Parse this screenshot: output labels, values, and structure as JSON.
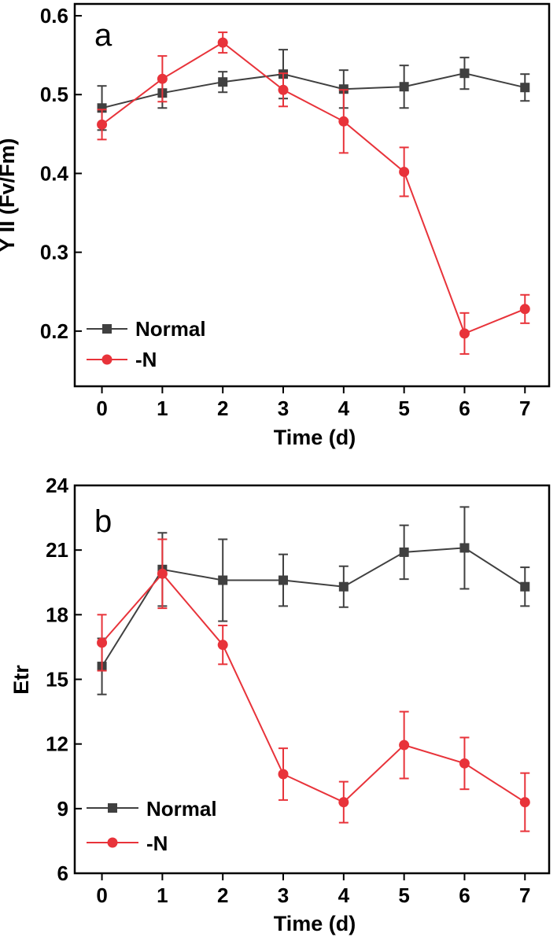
{
  "colors": {
    "normal": "#404040",
    "minus_n": "#e8333a",
    "axis": "#000000"
  },
  "chart_data": [
    {
      "type": "line",
      "panel": "a",
      "xlabel": "Time (d)",
      "ylabel": "Y II (Fv/Fm)",
      "x": [
        0,
        1,
        2,
        3,
        4,
        5,
        6,
        7
      ],
      "xlim": [
        -0.45,
        7.4
      ],
      "ylim": [
        0.13,
        0.615
      ],
      "xticks": [
        0,
        1,
        2,
        3,
        4,
        5,
        6,
        7
      ],
      "yticks": [
        0.2,
        0.3,
        0.4,
        0.5,
        0.6
      ],
      "ytick_labels": [
        "0.2",
        "0.3",
        "0.4",
        "0.5",
        "0.6"
      ],
      "legend_position": "bottom-left",
      "series": [
        {
          "name": "Normal",
          "marker": "square",
          "color": "#404040",
          "values": [
            0.483,
            0.502,
            0.516,
            0.526,
            0.507,
            0.51,
            0.527,
            0.509
          ],
          "errors": [
            0.028,
            0.019,
            0.013,
            0.031,
            0.024,
            0.027,
            0.02,
            0.017
          ]
        },
        {
          "name": "-N",
          "marker": "circle",
          "color": "#e8333a",
          "values": [
            0.462,
            0.52,
            0.566,
            0.506,
            0.466,
            0.402,
            0.197,
            0.228
          ],
          "errors": [
            0.019,
            0.029,
            0.013,
            0.021,
            0.04,
            0.031,
            0.026,
            0.018
          ]
        }
      ]
    },
    {
      "type": "line",
      "panel": "b",
      "xlabel": "Time (d)",
      "ylabel": "Etr",
      "x": [
        0,
        1,
        2,
        3,
        4,
        5,
        6,
        7
      ],
      "xlim": [
        -0.45,
        7.4
      ],
      "ylim": [
        6,
        24
      ],
      "xticks": [
        0,
        1,
        2,
        3,
        4,
        5,
        6,
        7
      ],
      "yticks": [
        6,
        9,
        12,
        15,
        18,
        21,
        24
      ],
      "ytick_labels": [
        "6",
        "9",
        "12",
        "15",
        "18",
        "21",
        "24"
      ],
      "legend_position": "bottom-left",
      "series": [
        {
          "name": "Normal",
          "marker": "square",
          "color": "#404040",
          "values": [
            15.6,
            20.1,
            19.6,
            19.6,
            19.3,
            20.9,
            21.1,
            19.3
          ],
          "errors": [
            1.3,
            1.7,
            1.9,
            1.2,
            0.95,
            1.25,
            1.9,
            0.9
          ]
        },
        {
          "name": "-N",
          "marker": "circle",
          "color": "#e8333a",
          "values": [
            16.7,
            19.9,
            16.6,
            10.6,
            9.3,
            11.95,
            11.1,
            9.3
          ],
          "errors": [
            1.3,
            1.6,
            0.9,
            1.2,
            0.95,
            1.55,
            1.2,
            1.35
          ]
        }
      ]
    }
  ]
}
